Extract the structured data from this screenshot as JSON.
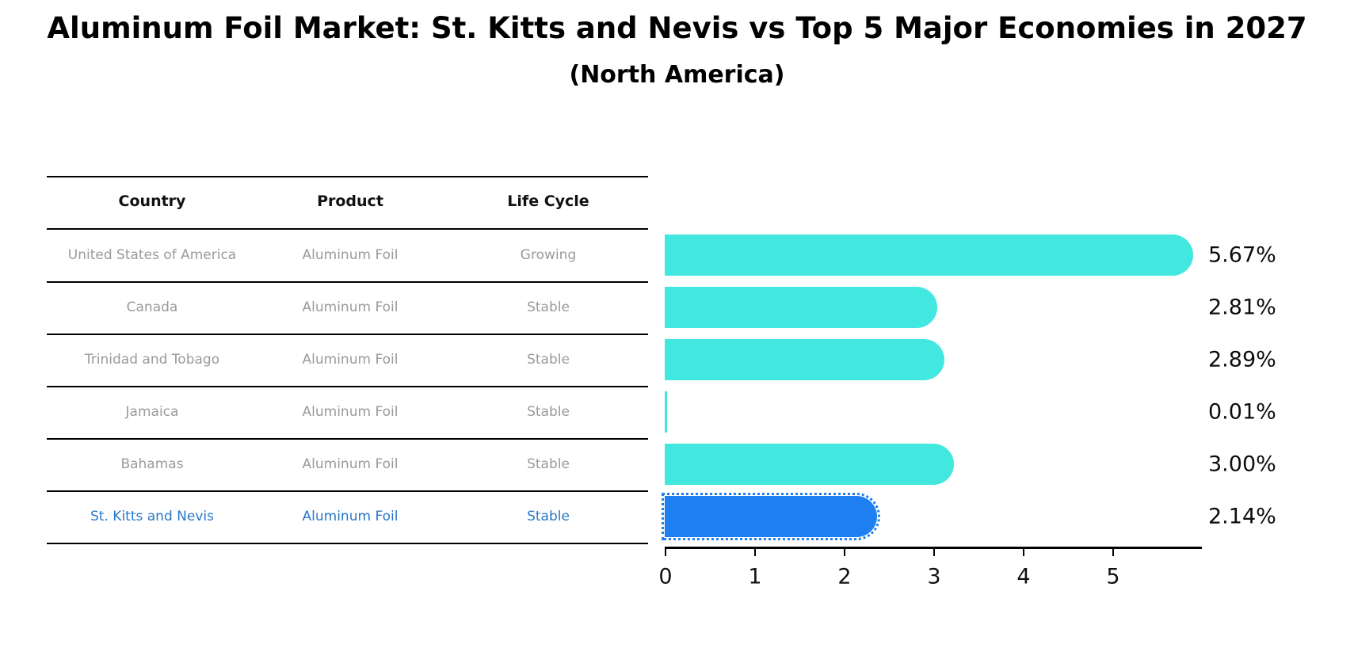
{
  "title": "Aluminum Foil Market: St. Kitts and Nevis vs Top 5 Major Economies in 2027",
  "subtitle": "(North America)",
  "table": {
    "headers": [
      "Country",
      "Product",
      "Life Cycle"
    ],
    "rows": [
      {
        "country": "United States of America",
        "product": "Aluminum Foil",
        "life_cycle": "Growing",
        "highlight": false
      },
      {
        "country": "Canada",
        "product": "Aluminum Foil",
        "life_cycle": "Stable",
        "highlight": false
      },
      {
        "country": "Trinidad and Tobago",
        "product": "Aluminum Foil",
        "life_cycle": "Stable",
        "highlight": false
      },
      {
        "country": "Jamaica",
        "product": "Aluminum Foil",
        "life_cycle": "Stable",
        "highlight": false
      },
      {
        "country": "Bahamas",
        "product": "Aluminum Foil",
        "life_cycle": "Stable",
        "highlight": false
      },
      {
        "country": "St. Kitts and Nevis",
        "product": "Aluminum Foil",
        "life_cycle": "Stable",
        "highlight": true
      }
    ]
  },
  "chart_data": {
    "type": "bar",
    "orientation": "horizontal",
    "title": "Aluminum Foil Market: St. Kitts and Nevis vs Top 5 Major Economies in 2027",
    "subtitle": "(North America)",
    "categories": [
      "United States of America",
      "Canada",
      "Trinidad and Tobago",
      "Jamaica",
      "Bahamas",
      "St. Kitts and Nevis"
    ],
    "values": [
      5.67,
      2.81,
      2.89,
      0.01,
      3.0,
      2.14
    ],
    "value_labels": [
      "5.67%",
      "2.81%",
      "2.89%",
      "0.01%",
      "3.00%",
      "2.14%"
    ],
    "xlabel": "",
    "ylabel": "",
    "x_ticks": [
      "0",
      "1",
      "2",
      "3",
      "4",
      "5"
    ],
    "xlim": [
      0,
      6
    ],
    "grid": false,
    "legend": "none",
    "highlight_category": "St. Kitts and Nevis"
  },
  "colors": {
    "bar_default": "#42e8e0",
    "bar_highlight": "#1e7ff0",
    "highlight_text": "#2878c8",
    "row_text": "#9a9a9a",
    "header_text": "#111111",
    "axis": "#000000",
    "value_label": "#0d0d0d"
  }
}
